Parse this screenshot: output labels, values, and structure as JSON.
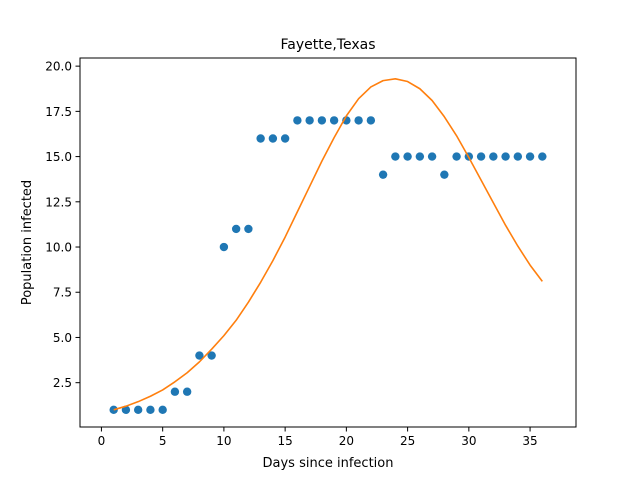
{
  "chart_data": {
    "type": "scatter",
    "title": "Fayette,Texas",
    "xlabel": "Days since infection",
    "ylabel": "Population infected",
    "xlim": [
      -1.75,
      38.75
    ],
    "ylim": [
      0.05,
      20.45
    ],
    "xticks": [
      0,
      5,
      10,
      15,
      20,
      25,
      30,
      35
    ],
    "xtick_labels": [
      "0",
      "5",
      "10",
      "15",
      "20",
      "25",
      "30",
      "35"
    ],
    "yticks": [
      2.5,
      5.0,
      7.5,
      10.0,
      12.5,
      15.0,
      17.5,
      20.0
    ],
    "ytick_labels": [
      "2.5",
      "5.0",
      "7.5",
      "10.0",
      "12.5",
      "15.0",
      "17.5",
      "20.0"
    ],
    "grid": false,
    "series": [
      {
        "kind": "scatter",
        "color": "#1f77b4",
        "x": [
          1,
          2,
          3,
          4,
          5,
          6,
          7,
          8,
          9,
          10,
          11,
          12,
          13,
          14,
          15,
          16,
          17,
          18,
          19,
          20,
          21,
          22,
          23,
          24,
          25,
          26,
          27,
          28,
          29,
          30,
          31,
          32,
          33,
          34,
          35,
          36
        ],
        "y": [
          1,
          1,
          1,
          1,
          1,
          2,
          2,
          4,
          4,
          10,
          11,
          11,
          16,
          16,
          16,
          17,
          17,
          17,
          17,
          17,
          17,
          17,
          14,
          15,
          15,
          15,
          15,
          14,
          15,
          15,
          15,
          15,
          15,
          15,
          15,
          15
        ]
      },
      {
        "kind": "line",
        "color": "#ff7f0e",
        "x": [
          1,
          2,
          3,
          4,
          5,
          6,
          7,
          8,
          9,
          10,
          11,
          12,
          13,
          14,
          15,
          16,
          17,
          18,
          19,
          20,
          21,
          22,
          23,
          24,
          25,
          26,
          27,
          28,
          29,
          30,
          31,
          32,
          33,
          34,
          35,
          36
        ],
        "y": [
          1.0,
          1.2,
          1.45,
          1.75,
          2.1,
          2.55,
          3.05,
          3.65,
          4.35,
          5.1,
          5.95,
          6.95,
          8.05,
          9.25,
          10.55,
          11.95,
          13.35,
          14.75,
          16.05,
          17.25,
          18.2,
          18.85,
          19.2,
          19.3,
          19.15,
          18.75,
          18.1,
          17.2,
          16.15,
          14.95,
          13.7,
          12.45,
          11.2,
          10.05,
          9.0,
          8.1
        ]
      }
    ]
  }
}
